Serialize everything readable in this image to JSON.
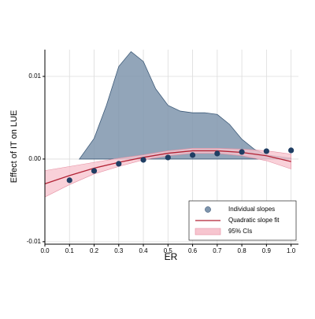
{
  "chart_data": {
    "type": "scatter",
    "x_label": "ER",
    "y_label": "Effect of IT on LUE",
    "xlim": [
      0,
      1.03
    ],
    "ylim": [
      -0.0103,
      0.01324
    ],
    "xticks": [
      {
        "value": 0,
        "label": "0.0"
      },
      0.1,
      0.2,
      0.3,
      0.4,
      0.5,
      0.6,
      0.7,
      0.8,
      0.9,
      {
        "value": 1,
        "label": "1.0"
      }
    ],
    "yticks": [
      -0.01,
      {
        "value": 0,
        "label": "0.00"
      },
      0.01
    ],
    "grid": true,
    "legend": "lower right",
    "density": {
      "color": "#7f95ad",
      "x": [
        0.14,
        0.2,
        0.25,
        0.3,
        0.35,
        0.4,
        0.45,
        0.5,
        0.55,
        0.6,
        0.65,
        0.7,
        0.75,
        0.8,
        0.85,
        0.9,
        1.0
      ],
      "values": [
        0,
        0.0025,
        0.0065,
        0.0112,
        0.013,
        0.0118,
        0.0085,
        0.0065,
        0.0058,
        0.0056,
        0.0056,
        0.0054,
        0.0042,
        0.0024,
        0.0012,
        0.0005,
        0.0001
      ]
    },
    "series": [
      {
        "name": "Individual slopes",
        "kind": "scatter",
        "color": "#1f3e63",
        "x": [
          0.1,
          0.2,
          0.3,
          0.4,
          0.5,
          0.6,
          0.7,
          0.8,
          0.9,
          1.0
        ],
        "values": [
          -0.00257,
          -0.00143,
          -0.00057,
          -0.0001,
          0.00019,
          0.00048,
          0.00067,
          0.00086,
          0.00095,
          0.00105
        ]
      },
      {
        "name": "Quadratic slope fit",
        "kind": "line",
        "color": "#b22234",
        "x": [
          0,
          0.1,
          0.2,
          0.3,
          0.4,
          0.5,
          0.6,
          0.7,
          0.8,
          0.9,
          1.0
        ],
        "values": [
          -0.003,
          -0.002,
          -0.0011,
          -0.0004,
          0.0002,
          0.0007,
          0.001,
          0.001,
          0.0008,
          0.0004,
          -0.0003
        ]
      },
      {
        "name": "95% CIs",
        "kind": "band",
        "color": "#f7c5cf",
        "x": [
          0,
          0.1,
          0.2,
          0.3,
          0.4,
          0.5,
          0.6,
          0.7,
          0.8,
          0.9,
          1.0
        ],
        "lower": [
          -0.0046,
          -0.0031,
          -0.0018,
          -0.0009,
          -0.0001,
          0.0004,
          0.0007,
          0.0007,
          0.0004,
          -0.0002,
          -0.0012
        ],
        "upper": [
          -0.0014,
          -0.0009,
          -0.0004,
          0.0001,
          0.0005,
          0.001,
          0.0013,
          0.0013,
          0.0012,
          0.001,
          0.0006
        ]
      }
    ]
  }
}
